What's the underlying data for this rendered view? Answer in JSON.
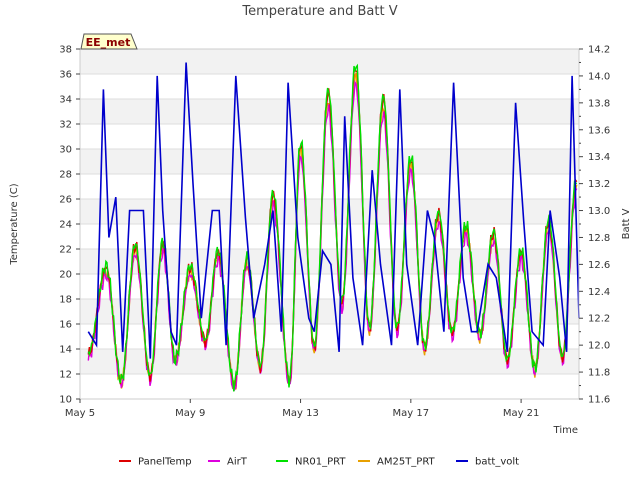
{
  "chart_data": {
    "type": "line",
    "title": "Temperature and Batt V",
    "xlabel": "Time",
    "ylabel_left": "Temperature (C)",
    "ylabel_right": "Batt V",
    "badge": "EE_met",
    "x_ticks": [
      "May 5",
      "May 9",
      "May 13",
      "May 17",
      "May 21"
    ],
    "x_tick_days": [
      5,
      9,
      13,
      17,
      21
    ],
    "xlim_days": [
      5,
      23.1
    ],
    "ylim_left": [
      10,
      38
    ],
    "yticks_left": [
      10,
      12,
      14,
      16,
      18,
      20,
      22,
      24,
      26,
      28,
      30,
      32,
      34,
      36,
      38
    ],
    "ylim_right": [
      11.6,
      14.2
    ],
    "yticks_right": [
      "11.6",
      "11.8",
      "12.0",
      "12.2",
      "12.4",
      "12.6",
      "12.8",
      "13.0",
      "13.2",
      "13.4",
      "13.6",
      "13.8",
      "14.0",
      "14.2"
    ],
    "grid": "horizontal",
    "legend_position": "bottom",
    "temperature_daily_extremes": [
      {
        "day": 5.3,
        "min": 13.5
      },
      {
        "day": 5.95,
        "max": 20.3
      },
      {
        "day": 6.5,
        "min": 11.3
      },
      {
        "day": 7.0,
        "max": 22.0
      },
      {
        "day": 7.55,
        "min": 11.7
      },
      {
        "day": 8.0,
        "max": 22.2
      },
      {
        "day": 8.45,
        "min": 13.0
      },
      {
        "day": 9.0,
        "max": 20.3
      },
      {
        "day": 9.55,
        "min": 14.5
      },
      {
        "day": 10.0,
        "max": 21.5
      },
      {
        "day": 10.6,
        "min": 11.0
      },
      {
        "day": 11.05,
        "max": 21.0
      },
      {
        "day": 11.55,
        "min": 12.5
      },
      {
        "day": 12.0,
        "max": 26.0
      },
      {
        "day": 12.6,
        "min": 11.3
      },
      {
        "day": 13.0,
        "max": 30.0
      },
      {
        "day": 13.5,
        "min": 14.0
      },
      {
        "day": 14.0,
        "max": 34.0
      },
      {
        "day": 14.5,
        "min": 17.5
      },
      {
        "day": 15.0,
        "max": 36.0
      },
      {
        "day": 15.5,
        "min": 15.5
      },
      {
        "day": 16.0,
        "max": 33.5
      },
      {
        "day": 16.5,
        "min": 15.5
      },
      {
        "day": 17.0,
        "max": 28.8
      },
      {
        "day": 17.5,
        "min": 14.0
      },
      {
        "day": 18.0,
        "max": 24.5
      },
      {
        "day": 18.5,
        "min": 15.2
      },
      {
        "day": 19.0,
        "max": 23.5
      },
      {
        "day": 19.5,
        "min": 15.0
      },
      {
        "day": 20.0,
        "max": 23.0
      },
      {
        "day": 20.5,
        "min": 13.0
      },
      {
        "day": 21.0,
        "max": 21.5
      },
      {
        "day": 21.5,
        "min": 12.3
      },
      {
        "day": 22.0,
        "max": 24.0
      },
      {
        "day": 22.5,
        "min": 13.2
      },
      {
        "day": 23.0,
        "max": 27.0
      }
    ],
    "series": [
      {
        "name": "PanelTemp",
        "color": "#dd0000",
        "offset": 0.4
      },
      {
        "name": "AirT",
        "color": "#dd00dd",
        "offset": -0.6
      },
      {
        "name": "NR01_PRT",
        "color": "#00e000",
        "offset": 0.6
      },
      {
        "name": "AM25T_PRT",
        "color": "#e8a000",
        "offset": -0.2
      },
      {
        "name": "batt_volt",
        "color": "#0000cc",
        "axis": "right",
        "points": [
          [
            5.3,
            12.1
          ],
          [
            5.6,
            12.0
          ],
          [
            5.85,
            13.9
          ],
          [
            6.05,
            12.8
          ],
          [
            6.3,
            13.1
          ],
          [
            6.55,
            11.95
          ],
          [
            6.8,
            13.0
          ],
          [
            7.0,
            13.0
          ],
          [
            7.3,
            13.0
          ],
          [
            7.55,
            11.9
          ],
          [
            7.8,
            14.0
          ],
          [
            8.0,
            13.0
          ],
          [
            8.3,
            12.1
          ],
          [
            8.5,
            12.0
          ],
          [
            8.85,
            14.1
          ],
          [
            9.1,
            13.2
          ],
          [
            9.4,
            12.2
          ],
          [
            9.8,
            13.0
          ],
          [
            10.05,
            13.0
          ],
          [
            10.3,
            12.0
          ],
          [
            10.65,
            14.0
          ],
          [
            11.0,
            12.95
          ],
          [
            11.3,
            12.2
          ],
          [
            11.7,
            12.6
          ],
          [
            12.0,
            13.0
          ],
          [
            12.3,
            12.1
          ],
          [
            12.55,
            13.95
          ],
          [
            12.9,
            12.8
          ],
          [
            13.3,
            12.2
          ],
          [
            13.5,
            12.1
          ],
          [
            13.8,
            12.7
          ],
          [
            14.1,
            12.6
          ],
          [
            14.4,
            11.95
          ],
          [
            14.6,
            13.7
          ],
          [
            14.9,
            12.5
          ],
          [
            15.25,
            12.0
          ],
          [
            15.6,
            13.3
          ],
          [
            15.9,
            12.6
          ],
          [
            16.3,
            12.0
          ],
          [
            16.6,
            13.9
          ],
          [
            16.85,
            12.6
          ],
          [
            17.25,
            12.0
          ],
          [
            17.6,
            13.0
          ],
          [
            17.85,
            12.8
          ],
          [
            18.2,
            12.1
          ],
          [
            18.55,
            13.95
          ],
          [
            18.9,
            12.5
          ],
          [
            19.2,
            12.1
          ],
          [
            19.4,
            12.1
          ],
          [
            19.8,
            12.6
          ],
          [
            20.1,
            12.5
          ],
          [
            20.5,
            11.95
          ],
          [
            20.8,
            13.8
          ],
          [
            21.1,
            12.9
          ],
          [
            21.4,
            12.1
          ],
          [
            21.8,
            12.0
          ],
          [
            22.05,
            13.0
          ],
          [
            22.4,
            12.5
          ],
          [
            22.65,
            11.95
          ],
          [
            22.85,
            14.0
          ],
          [
            23.1,
            12.2
          ]
        ]
      }
    ]
  }
}
